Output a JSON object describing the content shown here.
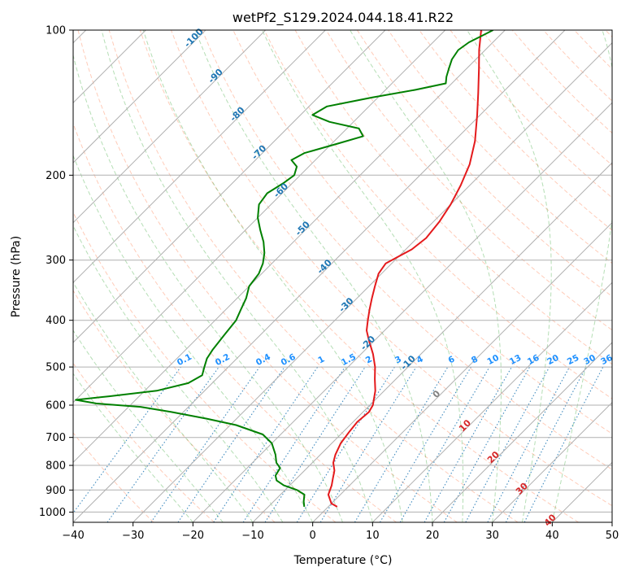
{
  "chart_data": {
    "type": "line",
    "subtype": "skew-t log-p diagram",
    "title": "wetPf2_S129.2024.044.18.41.R22",
    "xlabel": "Temperature (°C)",
    "ylabel": "Pressure (hPa)",
    "xlim": [
      -40,
      50
    ],
    "ylim": [
      1050,
      100
    ],
    "y_scale": "log",
    "grid": true,
    "x_ticks": [
      -40,
      -30,
      -20,
      -10,
      0,
      10,
      20,
      30,
      40,
      50
    ],
    "x_tick_labels": [
      "−40",
      "−30",
      "−20",
      "−10",
      "0",
      "10",
      "20",
      "30",
      "40",
      "50"
    ],
    "y_ticks": [
      100,
      200,
      300,
      400,
      500,
      600,
      700,
      800,
      900,
      1000
    ],
    "y_tick_labels": [
      "100",
      "200",
      "300",
      "400",
      "500",
      "600",
      "700",
      "800",
      "900",
      "1000"
    ],
    "series": [
      {
        "color": "#e41a1c",
        "points": [
          [
            975,
            1.5
          ],
          [
            960,
            0
          ],
          [
            920,
            -2
          ],
          [
            880,
            -3
          ],
          [
            850,
            -4
          ],
          [
            820,
            -5
          ],
          [
            790,
            -6.5
          ],
          [
            760,
            -7.5
          ],
          [
            720,
            -8.5
          ],
          [
            680,
            -9
          ],
          [
            650,
            -9.3
          ],
          [
            620,
            -9
          ],
          [
            600,
            -9.5
          ],
          [
            560,
            -11.5
          ],
          [
            530,
            -13.5
          ],
          [
            500,
            -15.5
          ],
          [
            470,
            -18
          ],
          [
            440,
            -21
          ],
          [
            420,
            -23
          ],
          [
            400,
            -24.5
          ],
          [
            380,
            -26
          ],
          [
            360,
            -27.5
          ],
          [
            340,
            -29
          ],
          [
            320,
            -30.5
          ],
          [
            305,
            -31
          ],
          [
            295,
            -30
          ],
          [
            285,
            -29
          ],
          [
            270,
            -28.5
          ],
          [
            250,
            -29
          ],
          [
            230,
            -30
          ],
          [
            210,
            -31.5
          ],
          [
            190,
            -33.5
          ],
          [
            170,
            -36.5
          ],
          [
            150,
            -40.5
          ],
          [
            135,
            -44
          ],
          [
            120,
            -48
          ],
          [
            110,
            -51
          ],
          [
            100,
            -54
          ]
        ]
      },
      {
        "color": "#008000",
        "points": [
          [
            975,
            -4
          ],
          [
            950,
            -5
          ],
          [
            920,
            -6
          ],
          [
            900,
            -8
          ],
          [
            880,
            -11
          ],
          [
            860,
            -13
          ],
          [
            840,
            -14
          ],
          [
            810,
            -14.5
          ],
          [
            790,
            -16
          ],
          [
            760,
            -17.5
          ],
          [
            720,
            -20
          ],
          [
            690,
            -23
          ],
          [
            660,
            -29
          ],
          [
            640,
            -35
          ],
          [
            620,
            -42
          ],
          [
            605,
            -48
          ],
          [
            595,
            -56
          ],
          [
            585,
            -60
          ],
          [
            575,
            -55
          ],
          [
            560,
            -48
          ],
          [
            540,
            -44
          ],
          [
            520,
            -43
          ],
          [
            500,
            -44
          ],
          [
            480,
            -45
          ],
          [
            460,
            -45.5
          ],
          [
            430,
            -46
          ],
          [
            400,
            -46.5
          ],
          [
            380,
            -47.5
          ],
          [
            360,
            -48.5
          ],
          [
            340,
            -50
          ],
          [
            320,
            -50.5
          ],
          [
            305,
            -51.5
          ],
          [
            290,
            -53
          ],
          [
            275,
            -55
          ],
          [
            260,
            -57.5
          ],
          [
            245,
            -60
          ],
          [
            230,
            -62
          ],
          [
            218,
            -62.5
          ],
          [
            208,
            -61.5
          ],
          [
            200,
            -61
          ],
          [
            192,
            -62
          ],
          [
            186,
            -64
          ],
          [
            180,
            -63
          ],
          [
            172,
            -59
          ],
          [
            166,
            -56
          ],
          [
            160,
            -58
          ],
          [
            155,
            -64
          ],
          [
            150,
            -68
          ],
          [
            144,
            -67
          ],
          [
            138,
            -61
          ],
          [
            133,
            -55
          ],
          [
            129,
            -51
          ],
          [
            125,
            -52
          ],
          [
            120,
            -53
          ],
          [
            115,
            -54
          ],
          [
            110,
            -54.5
          ],
          [
            106,
            -54
          ],
          [
            103,
            -53
          ],
          [
            100,
            -52
          ]
        ]
      }
    ],
    "isotherm_labels": [
      "-100",
      "-90",
      "-80",
      "-70",
      "-60",
      "-50",
      "-40",
      "-30",
      "-20",
      "-10",
      "0",
      "10",
      "20",
      "30",
      "40"
    ],
    "mixing_ratio_labels": [
      "0.1",
      "0.2",
      "0.4",
      "0.6",
      "1",
      "1.5",
      "2",
      "3",
      "4",
      "6",
      "8",
      "10",
      "13",
      "16",
      "20",
      "25",
      "30",
      "36"
    ],
    "colors": {
      "temperature": "#e41a1c",
      "dewpoint": "#008000",
      "isotherm_label_cold": "#1f77b4",
      "isotherm_label_warm": "#d62728",
      "isotherm_label_zero": "#808080",
      "mixing_ratio": "#1f77b4",
      "mixing_ratio_label": "#1e90ff",
      "dry_adiabat": "#ff7f50",
      "moist_adiabat": "#2ca02c",
      "grid": "#b0b0b0"
    }
  }
}
